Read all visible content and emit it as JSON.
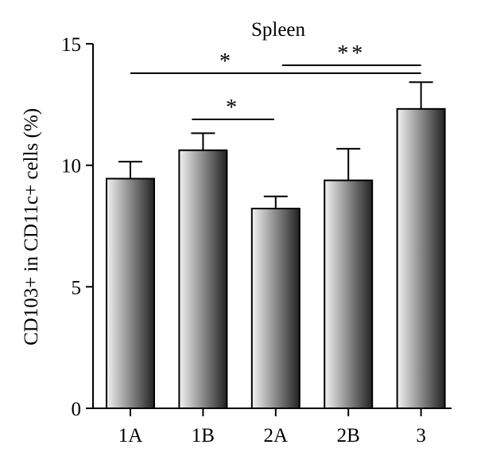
{
  "chart_data": {
    "type": "bar",
    "title": "Spleen",
    "xlabel": "",
    "ylabel": "CD103+ in CD11c+ cells (%)",
    "categories": [
      "1A",
      "1B",
      "2A",
      "2B",
      "3"
    ],
    "series": [
      {
        "values": [
          9.45,
          10.62,
          8.22,
          9.38,
          12.32
        ],
        "error": [
          0.7,
          0.7,
          0.5,
          1.3,
          1.1
        ]
      }
    ],
    "ylim": [
      0,
      15
    ],
    "yticks": [
      0,
      5,
      10,
      15
    ],
    "grid": false,
    "legend": "none",
    "bar_gradient": [
      "#f2f2f2",
      "#222222"
    ],
    "significance": [
      {
        "from": "1A",
        "to": "3",
        "label": "*"
      },
      {
        "from": "1B",
        "to": "2A",
        "label": "*"
      },
      {
        "from": "2A",
        "to": "3",
        "label": "**"
      }
    ]
  }
}
